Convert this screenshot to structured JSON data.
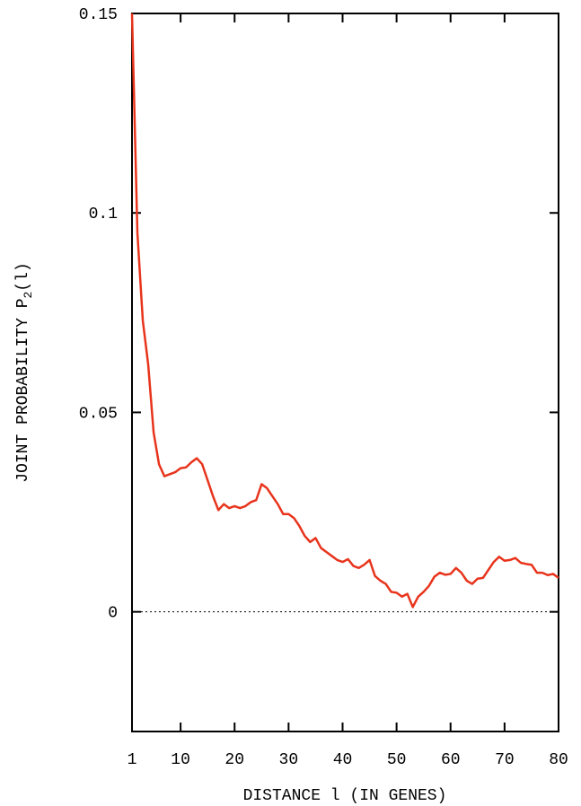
{
  "chart_data": {
    "type": "line",
    "title": "",
    "xlabel": "DISTANCE l (IN GENES)",
    "ylabel_main": "JOINT PROBABILITY P",
    "ylabel_sub": "2",
    "ylabel_tail": "(l)",
    "xlim": [
      1,
      80
    ],
    "ylim": [
      -0.03,
      0.15
    ],
    "x_ticks": [
      1,
      10,
      20,
      30,
      40,
      50,
      60,
      70,
      80
    ],
    "x_tick_labels": [
      "1",
      "10",
      "20",
      "30",
      "40",
      "50",
      "60",
      "70",
      "80"
    ],
    "y_ticks": [
      0,
      0.05,
      0.1,
      0.15
    ],
    "y_tick_labels": [
      "0",
      "0.05",
      "0.1",
      "0.15"
    ],
    "reference_line": {
      "y": 0,
      "style": "dotted",
      "color": "#000000"
    },
    "series": [
      {
        "color": "#e8341c",
        "x": [
          1,
          2,
          3,
          4,
          5,
          6,
          7,
          8,
          9,
          10,
          11,
          12,
          13,
          14,
          15,
          16,
          17,
          18,
          19,
          20,
          21,
          22,
          23,
          24,
          25,
          26,
          27,
          28,
          29,
          30,
          31,
          32,
          33,
          34,
          35,
          36,
          37,
          38,
          39,
          40,
          41,
          42,
          43,
          44,
          45,
          46,
          47,
          48,
          49,
          50,
          51,
          52,
          53,
          54,
          55,
          56,
          57,
          58,
          59,
          60,
          61,
          62,
          63,
          64,
          65,
          66,
          67,
          68,
          69,
          70,
          71,
          72,
          73,
          74,
          75,
          76,
          77,
          78,
          79,
          80
        ],
        "y": [
          0.15,
          0.095,
          0.073,
          0.062,
          0.045,
          0.037,
          0.034,
          0.0345,
          0.035,
          0.036,
          0.0362,
          0.0375,
          0.0385,
          0.037,
          0.033,
          0.029,
          0.0255,
          0.027,
          0.026,
          0.0265,
          0.026,
          0.0265,
          0.0275,
          0.028,
          0.032,
          0.031,
          0.029,
          0.027,
          0.0245,
          0.0245,
          0.0235,
          0.0215,
          0.019,
          0.0175,
          0.0185,
          0.016,
          0.015,
          0.014,
          0.013,
          0.0125,
          0.0132,
          0.0115,
          0.011,
          0.0118,
          0.013,
          0.009,
          0.0078,
          0.007,
          0.005,
          0.0048,
          0.0038,
          0.0045,
          0.0012,
          0.0038,
          0.005,
          0.0065,
          0.0088,
          0.0098,
          0.0093,
          0.0095,
          0.011,
          0.0098,
          0.0078,
          0.007,
          0.0083,
          0.0085,
          0.0105,
          0.0125,
          0.0138,
          0.0128,
          0.013,
          0.0135,
          0.0123,
          0.012,
          0.0118,
          0.0098,
          0.0098,
          0.0092,
          0.0095,
          0.0085
        ]
      }
    ],
    "grid": false
  }
}
